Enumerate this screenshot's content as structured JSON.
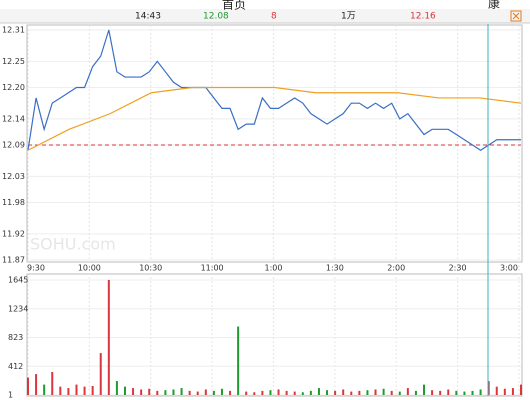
{
  "header": {
    "top_link": "首页",
    "corner_text": "康",
    "time": "14:43",
    "price": "12.08",
    "change": "8",
    "volume": "1万",
    "average": "12.16"
  },
  "watermark": "SOHU.com",
  "chart_data": [
    {
      "type": "line",
      "xlim": [
        0,
        241
      ],
      "xticks": [
        {
          "value": 0,
          "label": "9:30"
        },
        {
          "value": 30,
          "label": "10:00"
        },
        {
          "value": 60,
          "label": "10:30"
        },
        {
          "value": 90,
          "label": "11:00"
        },
        {
          "value": 120,
          "label": "1:00"
        },
        {
          "value": 150,
          "label": "1:30"
        },
        {
          "value": 180,
          "label": "2:00"
        },
        {
          "value": 210,
          "label": "2:30"
        },
        {
          "value": 240,
          "label": "3:00"
        }
      ],
      "ylim": [
        11.87,
        12.31
      ],
      "yticks": [
        {
          "value": 11.87,
          "label": "11.87"
        },
        {
          "value": 11.92,
          "label": "11.92"
        },
        {
          "value": 11.98,
          "label": "11.98"
        },
        {
          "value": 12.03,
          "label": "12.03"
        },
        {
          "value": 12.09,
          "label": "12.09"
        },
        {
          "value": 12.14,
          "label": "12.14"
        },
        {
          "value": 12.2,
          "label": "12.20"
        },
        {
          "value": 12.25,
          "label": "12.25"
        },
        {
          "value": 12.31,
          "label": "12.31"
        }
      ],
      "baseline": 12.09,
      "baseline_color": "#d9363e",
      "grid": true,
      "series": [
        {
          "color": "#3a6fc4",
          "values": [
            12.08,
            12.18,
            12.12,
            12.17,
            12.18,
            12.19,
            12.2,
            12.2,
            12.24,
            12.26,
            12.31,
            12.23,
            12.22,
            12.22,
            12.22,
            12.23,
            12.25,
            12.23,
            12.21,
            12.2,
            12.2,
            12.2,
            12.2,
            12.18,
            12.16,
            12.16,
            12.12,
            12.13,
            12.13,
            12.18,
            12.16,
            12.16,
            12.17,
            12.18,
            12.17,
            12.15,
            12.14,
            12.13,
            12.14,
            12.15,
            12.17,
            12.17,
            12.16,
            12.17,
            12.16,
            12.17,
            12.14,
            12.15,
            12.13,
            12.11,
            12.12,
            12.12,
            12.12,
            12.11,
            12.1,
            12.09,
            12.08,
            12.09,
            12.1,
            12.1,
            12.1,
            12.1
          ]
        },
        {
          "color": "#f0a020",
          "values": [
            12.08,
            12.12,
            12.15,
            12.19,
            12.2,
            12.2,
            12.2,
            12.19,
            12.19,
            12.19,
            12.18,
            12.18,
            12.17
          ]
        }
      ]
    },
    {
      "type": "bar",
      "xlim": [
        0,
        241
      ],
      "ylim": [
        1,
        1645
      ],
      "yticks": [
        1,
        412,
        823,
        1234,
        1645
      ],
      "up_color": "#d9363e",
      "down_color": "#1f9a2e",
      "values": [
        250,
        300,
        150,
        330,
        120,
        100,
        150,
        120,
        130,
        600,
        1645,
        200,
        120,
        100,
        80,
        90,
        60,
        70,
        80,
        100,
        60,
        50,
        80,
        60,
        90,
        60,
        980,
        50,
        40,
        60,
        70,
        80,
        60,
        50,
        40,
        60,
        100,
        70,
        60,
        80,
        50,
        60,
        70,
        80,
        90,
        60,
        50,
        100,
        60,
        150,
        70,
        60,
        80,
        60,
        50,
        60,
        80,
        200,
        120,
        90,
        100,
        150
      ]
    }
  ]
}
